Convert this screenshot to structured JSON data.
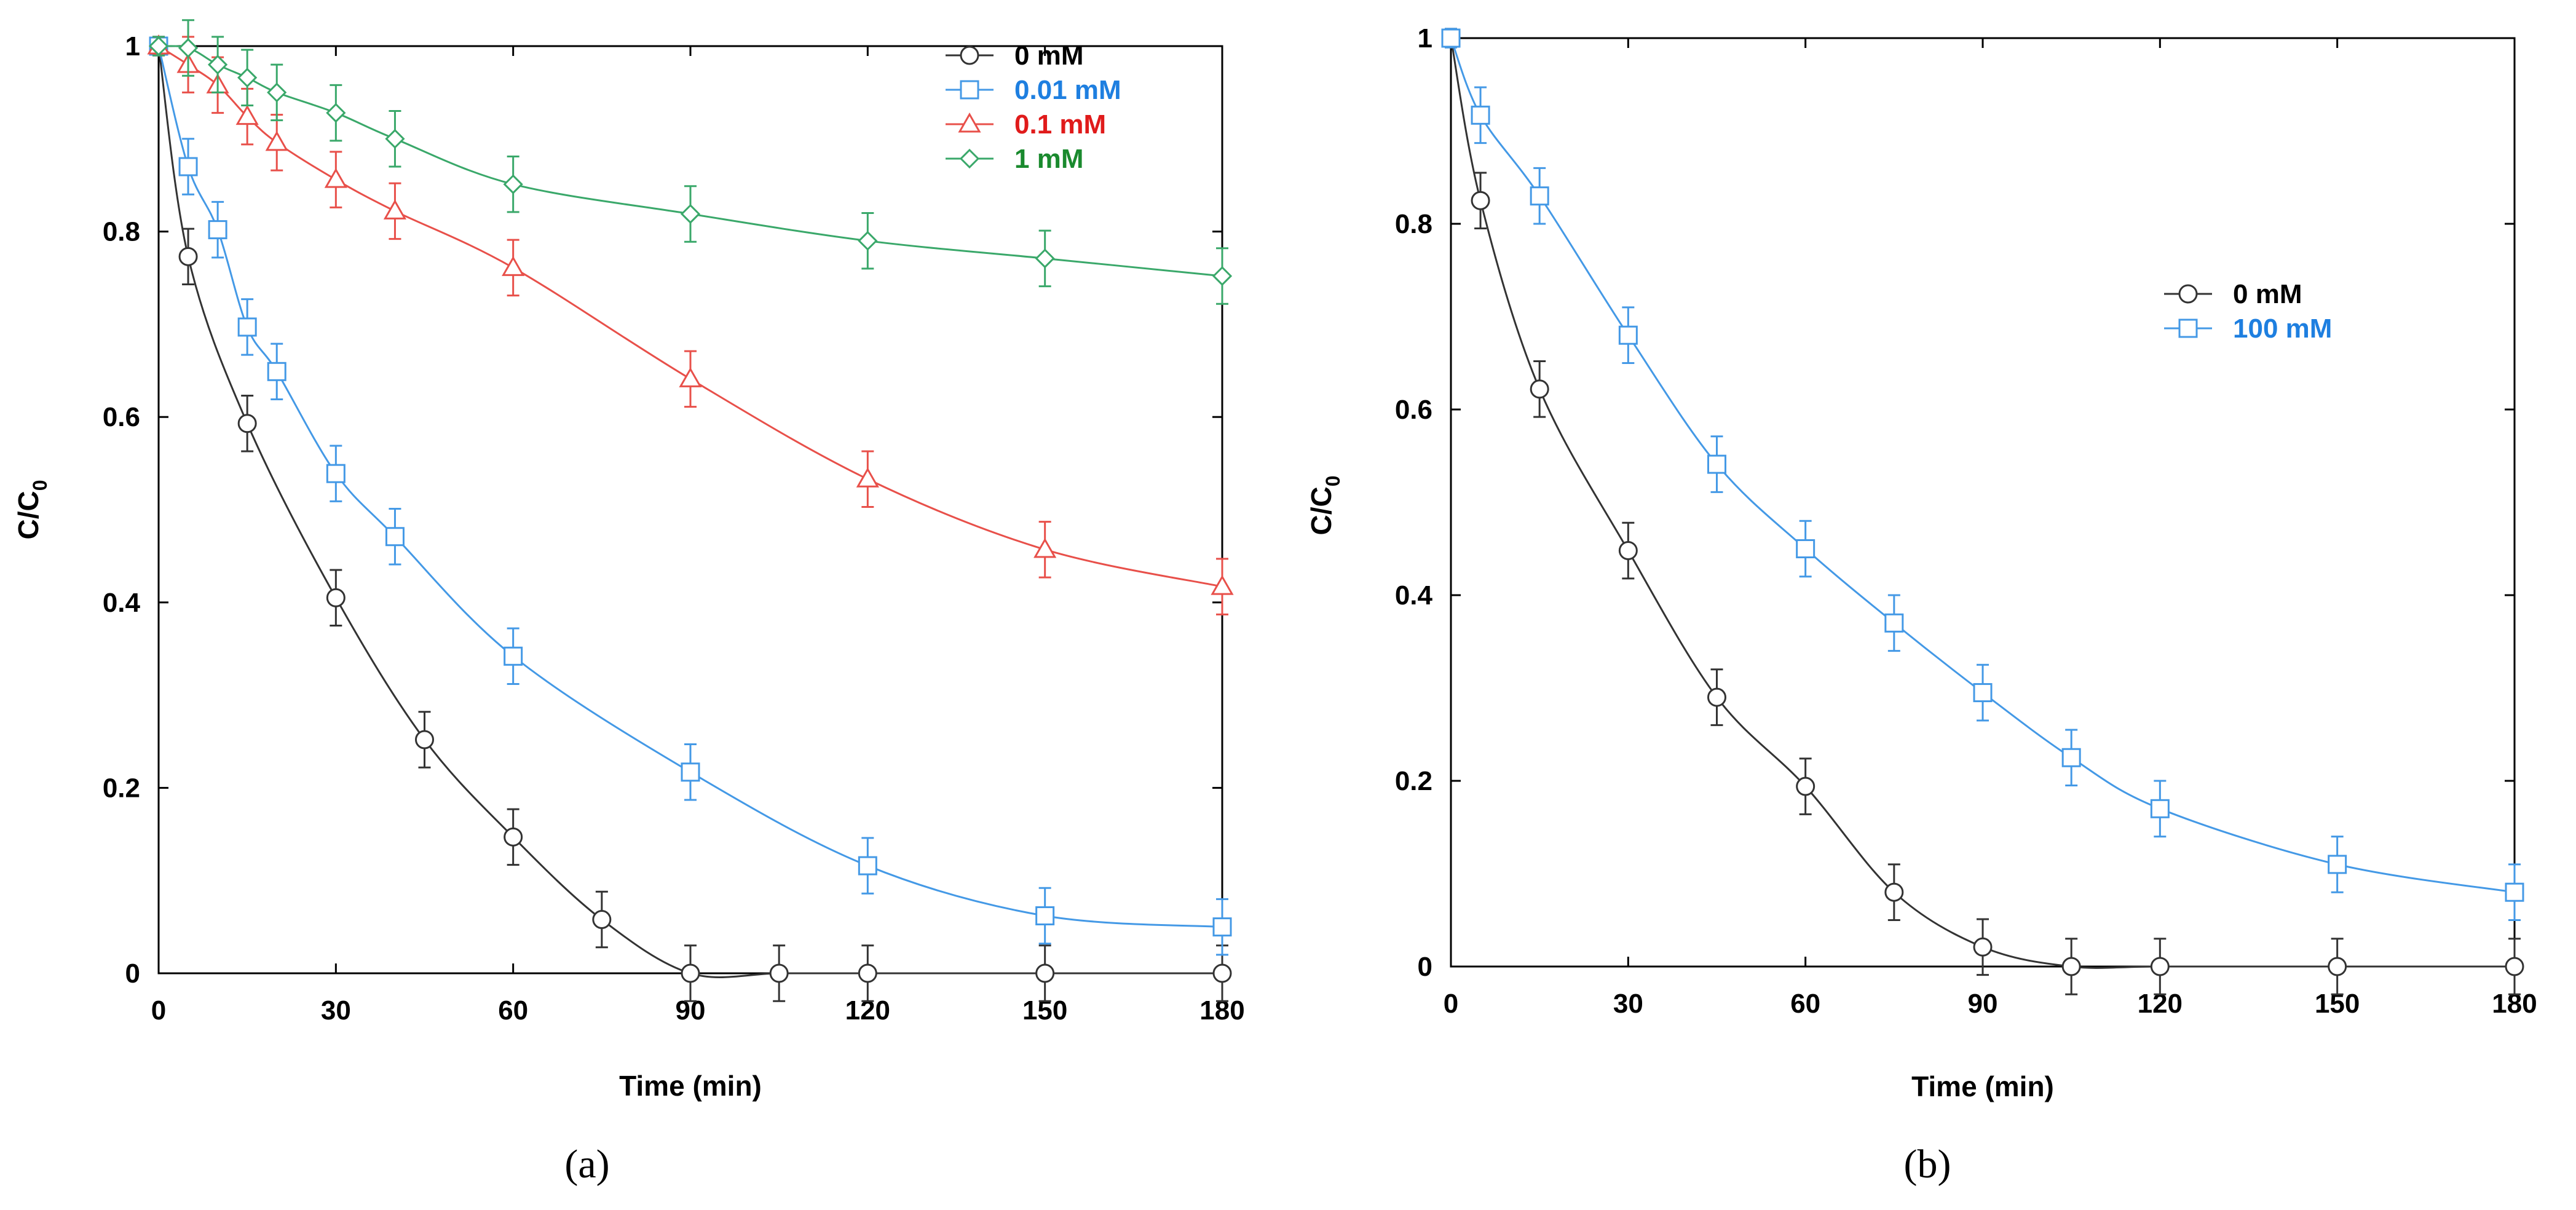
{
  "chart_data": [
    {
      "type": "line",
      "panel_label": "(a)",
      "xlabel": "Time (min)",
      "ylabel_main": "C/C",
      "ylabel_sub": "0",
      "xlim": [
        0,
        180
      ],
      "ylim": [
        0,
        1
      ],
      "xticks": [
        "0",
        "30",
        "60",
        "90",
        "120",
        "150",
        "180"
      ],
      "yticks": [
        "0",
        "0.2",
        "0.4",
        "0.6",
        "0.8",
        "1"
      ],
      "legend_position": "top-right",
      "series": [
        {
          "name": "0 mM",
          "color": "#333333",
          "text_color": "#000000",
          "marker": "circle",
          "x": [
            0,
            5,
            15,
            30,
            45,
            60,
            75,
            90,
            105,
            120,
            150,
            180
          ],
          "y": [
            1,
            0.773,
            0.593,
            0.405,
            0.252,
            0.147,
            0.058,
            0,
            0,
            0,
            0,
            0
          ],
          "err": [
            0.01,
            0.03,
            0.03,
            0.03,
            0.03,
            0.03,
            0.03,
            0.03,
            0.03,
            0.03,
            0.03,
            0.03
          ]
        },
        {
          "name": "0.01 mM",
          "color": "#4499e6",
          "text_color": "#1e7fe0",
          "marker": "square",
          "x": [
            0,
            5,
            10,
            15,
            20,
            30,
            40,
            60,
            90,
            120,
            150,
            180
          ],
          "y": [
            1,
            0.87,
            0.802,
            0.697,
            0.649,
            0.539,
            0.471,
            0.342,
            0.217,
            0.116,
            0.062,
            0.05
          ],
          "err": [
            0.01,
            0.03,
            0.03,
            0.03,
            0.03,
            0.03,
            0.03,
            0.03,
            0.03,
            0.03,
            0.03,
            0.03
          ]
        },
        {
          "name": "0.1 mM",
          "color": "#e8504a",
          "text_color": "#e01b1b",
          "marker": "triangle",
          "x": [
            0,
            5,
            10,
            15,
            20,
            30,
            40,
            60,
            90,
            120,
            150,
            180
          ],
          "y": [
            1,
            0.98,
            0.958,
            0.924,
            0.896,
            0.856,
            0.822,
            0.761,
            0.641,
            0.533,
            0.457,
            0.417
          ],
          "err": [
            0.01,
            0.03,
            0.03,
            0.03,
            0.03,
            0.03,
            0.03,
            0.03,
            0.03,
            0.03,
            0.03,
            0.03
          ]
        },
        {
          "name": "1 mM",
          "color": "#3aa86a",
          "text_color": "#1a8a2e",
          "marker": "diamond",
          "x": [
            0,
            5,
            10,
            15,
            20,
            30,
            40,
            60,
            90,
            120,
            150,
            180
          ],
          "y": [
            1,
            0.998,
            0.98,
            0.966,
            0.95,
            0.928,
            0.9,
            0.851,
            0.819,
            0.79,
            0.771,
            0.752
          ],
          "err": [
            0.01,
            0.03,
            0.03,
            0.03,
            0.03,
            0.03,
            0.03,
            0.03,
            0.03,
            0.03,
            0.03,
            0.03
          ]
        }
      ]
    },
    {
      "type": "line",
      "panel_label": "(b)",
      "xlabel": "Time (min)",
      "ylabel_main": "C/C",
      "ylabel_sub": "0",
      "xlim": [
        0,
        180
      ],
      "ylim": [
        0,
        1
      ],
      "xticks": [
        "0",
        "30",
        "60",
        "90",
        "120",
        "150",
        "180"
      ],
      "yticks": [
        "0",
        "0.2",
        "0.4",
        "0.6",
        "0.8",
        "1"
      ],
      "legend_position": "center-right",
      "series": [
        {
          "name": "0 mM",
          "color": "#333333",
          "text_color": "#000000",
          "marker": "circle",
          "x": [
            0,
            5,
            15,
            30,
            45,
            60,
            75,
            90,
            105,
            120,
            150,
            180
          ],
          "y": [
            1,
            0.825,
            0.622,
            0.448,
            0.29,
            0.194,
            0.08,
            0.021,
            0,
            0,
            0,
            0
          ],
          "err": [
            0.01,
            0.03,
            0.03,
            0.03,
            0.03,
            0.03,
            0.03,
            0.03,
            0.03,
            0.03,
            0.03,
            0.03
          ]
        },
        {
          "name": "100 mM",
          "color": "#4499e6",
          "text_color": "#1e7fe0",
          "marker": "square",
          "x": [
            0,
            5,
            15,
            30,
            45,
            60,
            75,
            90,
            105,
            120,
            150,
            180
          ],
          "y": [
            1,
            0.917,
            0.83,
            0.68,
            0.541,
            0.45,
            0.37,
            0.295,
            0.225,
            0.17,
            0.11,
            0.08
          ],
          "err": [
            0.01,
            0.03,
            0.03,
            0.03,
            0.03,
            0.03,
            0.03,
            0.03,
            0.03,
            0.03,
            0.03,
            0.03
          ]
        }
      ]
    }
  ]
}
